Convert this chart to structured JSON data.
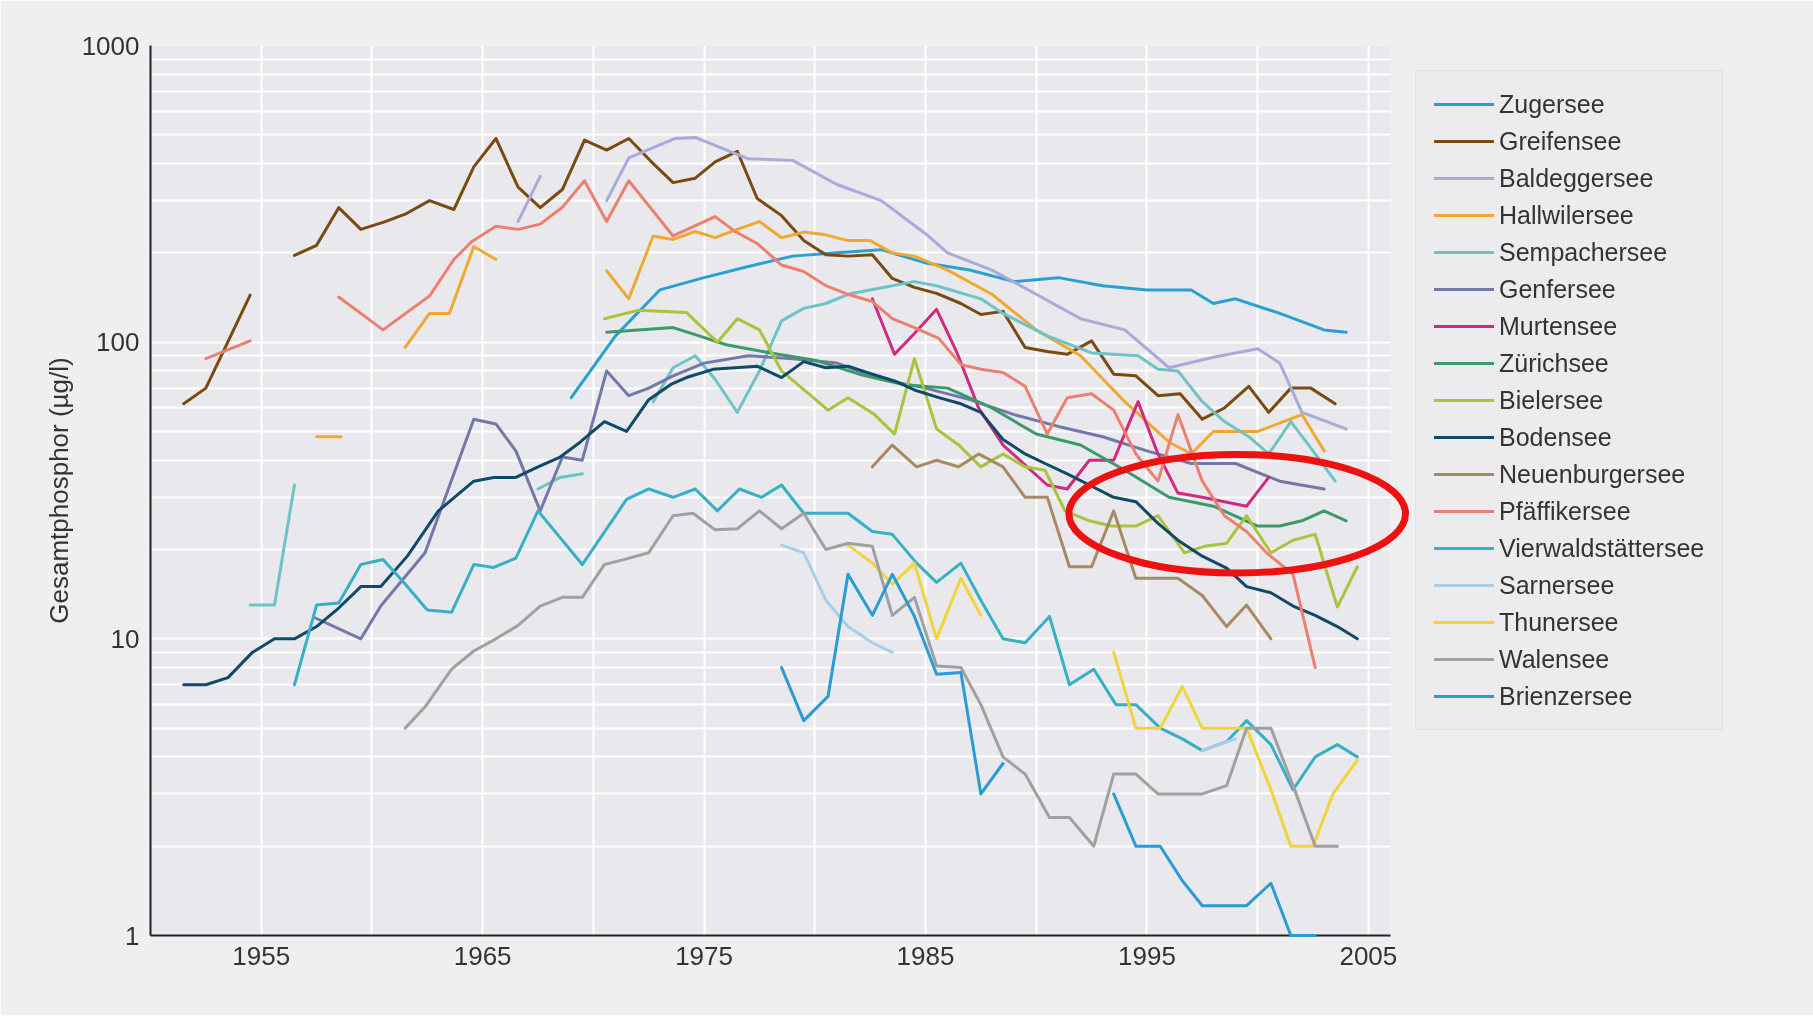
{
  "chart_data": {
    "type": "line",
    "ylabel": "Gesamtphosphor (µg/l)",
    "log": "y",
    "grid": true,
    "legend": "right",
    "xlim": [
      1950,
      2006
    ],
    "ylim": [
      1,
      1000
    ],
    "xticks": [
      1955,
      {
        "value": 1960,
        "label": null
      },
      1965,
      {
        "value": 1970,
        "label": null
      },
      1975,
      {
        "value": 1980,
        "label": null
      },
      1985,
      {
        "value": 1990,
        "label": null
      },
      1995,
      {
        "value": 2000,
        "label": null
      },
      2005
    ],
    "yticks": [
      1,
      10,
      100,
      1000
    ],
    "series": [
      {
        "name": "Zugersee",
        "color": "#2aa0d2",
        "x": [
          1969,
          1971,
          1973,
          1975,
          1977,
          1979,
          1981,
          1983,
          1985,
          1987,
          1989,
          1991,
          1993,
          1995,
          1997,
          1998,
          1999,
          2001,
          2003,
          2004
        ],
        "values": [
          65,
          105,
          150,
          165,
          180,
          195,
          200,
          205,
          185,
          175,
          160,
          165,
          155,
          150,
          150,
          135,
          140,
          125,
          110,
          108
        ]
      },
      {
        "name": "Greifensee",
        "color": "#7a4a10",
        "x": [
          1951.5,
          1952.5,
          1954.5,
          1955.5,
          1956.5,
          1957.5,
          1958.5,
          1959.5,
          1960.6,
          1961.5,
          1962.6,
          1963.7,
          1964.6,
          1965.6,
          1966.6,
          1967.6,
          1968.6,
          1969.6,
          1970.6,
          1971.6,
          1972.6,
          1973.6,
          1974.6,
          1975.5,
          1976.5,
          1977.4,
          1978.5,
          1979.5,
          1980.5,
          1981.5,
          1982.6,
          1983.5,
          1984.5,
          1985.5,
          1986.6,
          1987.5,
          1988.5,
          1989.5,
          1990.5,
          1991.4,
          1992.5,
          1993.5,
          1994.5,
          1995.5,
          1996.5,
          1997.5,
          1998.5,
          1999.6,
          2000.5,
          2001.5,
          2002.4,
          2003.5
        ],
        "values": [
          62,
          70,
          144,
          null,
          196,
          212,
          284,
          240,
          255,
          270,
          300,
          280,
          390,
          486,
          333,
          284,
          327,
          480,
          444,
          486,
          407,
          345,
          357,
          405,
          440,
          305,
          267,
          220,
          197,
          195,
          197,
          164,
          153,
          146,
          135,
          124,
          127,
          96,
          93,
          91,
          101,
          78,
          77,
          66,
          67,
          55,
          60,
          71,
          58,
          70,
          70,
          62
        ]
      },
      {
        "name": "Baldeggersee",
        "color": "#a9aad8",
        "x": [
          1966.6,
          1967.6,
          1969,
          1970.6,
          1971.6,
          1973.7,
          1974.6,
          1977,
          1979,
          1981,
          1983,
          1985,
          1986,
          1988,
          1990,
          1992,
          1994,
          1996,
          1998,
          2000,
          2001,
          2002,
          2004
        ],
        "values": [
          255,
          362,
          null,
          300,
          418,
          486,
          490,
          415,
          410,
          340,
          300,
          232,
          200,
          175,
          145,
          120,
          110,
          82,
          89,
          95,
          85,
          58,
          51
        ]
      },
      {
        "name": "Hallwilersee",
        "color": "#f0a832",
        "x": [
          1957.5,
          1958.6,
          1960,
          1961.5,
          1962.6,
          1963.5,
          1964.6,
          1965.6,
          1968,
          1970.6,
          1971.6,
          1972.7,
          1973.6,
          1974.6,
          1975.5,
          1976.5,
          1977.5,
          1978.5,
          1979.5,
          1980.5,
          1981.5,
          1982.5,
          1983.5,
          1984.5,
          1986,
          1988,
          1990,
          1992,
          1994,
          1996,
          1997,
          1998,
          2000,
          2002,
          2003
        ],
        "values": [
          48,
          48,
          null,
          96,
          125,
          125,
          210,
          190,
          null,
          174,
          140,
          228,
          222,
          236,
          225,
          240,
          255,
          225,
          235,
          230,
          220,
          220,
          200,
          195,
          175,
          145,
          110,
          90,
          63,
          46,
          42,
          50,
          50,
          57,
          43
        ]
      },
      {
        "name": "Sempachersee",
        "color": "#6ec4c4",
        "x": [
          1954.5,
          1955.6,
          1956.5,
          1962,
          1967.5,
          1968.5,
          1969.5,
          1971,
          1972.7,
          1973.6,
          1974.6,
          1975.5,
          1976.5,
          1977.5,
          1978.5,
          1979.5,
          1980.5,
          1981.5,
          1982.5,
          1983.5,
          1984.5,
          1985.5,
          1987.5,
          1988.5,
          1990.5,
          1992.5,
          1994.6,
          1995.5,
          1996.4,
          1997.5,
          1998.5,
          1999.6,
          2000.5,
          2001.5,
          2002.4,
          2003.5
        ],
        "values": [
          13,
          13,
          33,
          null,
          32,
          35,
          36,
          null,
          63,
          82,
          90,
          75,
          58,
          80,
          118,
          130,
          135,
          145,
          150,
          155,
          160,
          155,
          140,
          125,
          105,
          92,
          90,
          81,
          80,
          63,
          54,
          48,
          42,
          54,
          44,
          34
        ]
      },
      {
        "name": "Genfersee",
        "color": "#7478a8",
        "x": [
          1957.4,
          1959.5,
          1960.4,
          1962.4,
          1964.6,
          1965.6,
          1966.5,
          1967.6,
          1968.6,
          1969.5,
          1970.6,
          1971.6,
          1972.5,
          1973.6,
          1975,
          1977,
          1979,
          1981,
          1983,
          1985,
          1987,
          1989,
          1991,
          1993,
          1995,
          1997,
          1999,
          2001,
          2003
        ],
        "values": [
          11.8,
          10,
          12.9,
          19.5,
          55,
          53,
          43,
          27,
          41,
          40,
          80,
          66,
          70,
          77,
          85,
          90,
          88,
          85,
          75,
          70,
          64,
          57,
          52,
          48,
          43,
          39,
          39,
          34,
          32
        ]
      },
      {
        "name": "Murtensee",
        "color": "#d02a80",
        "x": [
          1982.6,
          1983.6,
          1984.5,
          1985.5,
          1986.4,
          1987.4,
          1988.5,
          1990.5,
          1991.4,
          1992.4,
          1993.5,
          1994.6,
          1995.5,
          1996.4,
          1997.5,
          1998.5,
          1999.5,
          2000.5
        ],
        "values": [
          140,
          91,
          107,
          129,
          93,
          60,
          45,
          33,
          32,
          40,
          40,
          63,
          42,
          31,
          30,
          29,
          28,
          35
        ]
      },
      {
        "name": "Zürichsee",
        "color": "#3a9a6c",
        "x": [
          1970.6,
          1973.6,
          1974.6,
          1976,
          1978,
          1980,
          1982,
          1984,
          1986,
          1988,
          1990,
          1992,
          1994,
          1996,
          1998,
          2000,
          2001,
          2002,
          2003,
          2004
        ],
        "values": [
          108,
          112,
          106,
          98,
          92,
          87,
          78,
          72,
          70,
          60,
          49,
          45,
          37,
          30,
          28,
          24,
          24,
          25,
          27,
          25
        ]
      },
      {
        "name": "Bielersee",
        "color": "#a8c43c",
        "x": [
          1970.5,
          1972,
          1974.2,
          1975.6,
          1976.5,
          1977.5,
          1978.5,
          1980.6,
          1981.5,
          1982.7,
          1983.6,
          1984.5,
          1985.5,
          1986.5,
          1987.5,
          1988.5,
          1989.5,
          1990.4,
          1991.3,
          1992.4,
          1993.4,
          1994.5,
          1995.5,
          1996.7,
          1997.6,
          1998.6,
          1999.5,
          2000.6,
          2001.6,
          2002.6,
          2003.6,
          2004.5
        ],
        "values": [
          120,
          128,
          126,
          100,
          120,
          110,
          80,
          59,
          65,
          57,
          49,
          88,
          51,
          45,
          38,
          42,
          38,
          37,
          27,
          25,
          24,
          24,
          26,
          19.5,
          20.5,
          21,
          26,
          19.5,
          21.5,
          22.5,
          12.8,
          17.5
        ]
      },
      {
        "name": "Bodensee",
        "color": "#0f4a68",
        "x": [
          1951.5,
          1952.5,
          1953.5,
          1954.6,
          1955.6,
          1956.5,
          1957.5,
          1958.5,
          1959.5,
          1960.4,
          1961.6,
          1963,
          1964.6,
          1965.5,
          1966.5,
          1967.5,
          1968.5,
          1969.4,
          1970.5,
          1971.5,
          1972.5,
          1973.5,
          1974.2,
          1975.4,
          1976.4,
          1977.4,
          1978.5,
          1979.5,
          1980.5,
          1981.5,
          1982.6,
          1983.6,
          1984.5,
          1985.6,
          1986.6,
          1987.5,
          1988.5,
          1989.5,
          1990.4,
          1991.4,
          1992.4,
          1993.5,
          1994.5,
          1995.5,
          1996.4,
          1997.5,
          1998.6,
          1999.5,
          2000.6,
          2001.6,
          2002.6,
          2003.6,
          2004.5
        ],
        "values": [
          7,
          7,
          7.4,
          9,
          10,
          10,
          11,
          12.7,
          15,
          15,
          19,
          27,
          34,
          35,
          35,
          38,
          41,
          46,
          54,
          50,
          64,
          72,
          76,
          81,
          82,
          83,
          76,
          86,
          82,
          83,
          78,
          74,
          69,
          65,
          62,
          58,
          47,
          42,
          39,
          36,
          33,
          30,
          29,
          24.5,
          21.5,
          19,
          17.3,
          15,
          14.3,
          12.9,
          12,
          11,
          10
        ]
      },
      {
        "name": "Neuenburgersee",
        "color": "#a88a62",
        "x": [
          1982.6,
          1983.5,
          1984.6,
          1985.5,
          1986.5,
          1987.4,
          1988.5,
          1989.5,
          1990.5,
          1991.5,
          1992.5,
          1993.5,
          1994.5,
          1995.5,
          1996.4,
          1997.5,
          1998.6,
          1999.5,
          2000.6
        ],
        "values": [
          38,
          45,
          38,
          40,
          38,
          42,
          38,
          30,
          30,
          17.5,
          17.5,
          27,
          16,
          16,
          16,
          14,
          11,
          13,
          10
        ]
      },
      {
        "name": "Pfäffikersee",
        "color": "#ec8070",
        "x": [
          1952.5,
          1954.5,
          1956,
          1958.5,
          1960.5,
          1962.6,
          1963.7,
          1964.5,
          1965.6,
          1966.6,
          1967.6,
          1968.6,
          1969.6,
          1970.6,
          1971.6,
          1973.6,
          1975.5,
          1976.4,
          1977.4,
          1978.5,
          1979.5,
          1980.5,
          1981.5,
          1982.6,
          1983.5,
          1984.5,
          1985.6,
          1986.6,
          1987.5,
          1988.5,
          1989.5,
          1990.5,
          1991.4,
          1992.5,
          1993.5,
          1994.5,
          1995.5,
          1996.4,
          1997.5,
          1998.5,
          1999.5,
          2000.4,
          2001.6,
          2002.6
        ],
        "values": [
          88,
          101,
          null,
          142,
          110,
          143,
          190,
          218,
          246,
          240,
          250,
          285,
          350,
          255,
          350,
          228,
          265,
          236,
          215,
          182,
          173,
          155,
          145,
          137,
          120,
          112,
          103,
          84,
          81,
          79,
          71,
          49,
          65,
          67,
          59,
          42,
          34,
          57,
          34,
          26,
          23,
          19.5,
          16.5,
          8
        ]
      },
      {
        "name": "Vierwaldstättersee",
        "color": "#36b0c4",
        "x": [
          1956.5,
          1957.5,
          1958.5,
          1959.5,
          1960.5,
          1961.5,
          1962.5,
          1963.6,
          1964.6,
          1965.5,
          1966.5,
          1967.5,
          1969.5,
          1971.5,
          1972.5,
          1973.6,
          1974.6,
          1975.6,
          1976.6,
          1977.6,
          1978.5,
          1979.5,
          1980.5,
          1981.5,
          1982.6,
          1983.5,
          1984.6,
          1985.5,
          1986.6,
          1987.5,
          1988.5,
          1989.5,
          1990.6,
          1991.5,
          1992.6,
          1993.6,
          1994.5,
          1995.6,
          1996.6,
          1997.5,
          1998.6,
          1999.5,
          2000.6,
          2001.6,
          2002.6,
          2003.6,
          2004.5
        ],
        "values": [
          7,
          13,
          13.2,
          17.8,
          18.5,
          15.3,
          12.5,
          12.3,
          17.8,
          17.4,
          18.7,
          27,
          17.8,
          29.5,
          32,
          30,
          32,
          27,
          32,
          30,
          33,
          26.5,
          26.5,
          26.5,
          23,
          22.5,
          18,
          15.5,
          18,
          13.5,
          10,
          9.7,
          11.9,
          7,
          7.9,
          6,
          6,
          5,
          4.6,
          4.2,
          4.5,
          5.3,
          4.4,
          3.1,
          4,
          4.4,
          4
        ]
      },
      {
        "name": "Sarnersee",
        "color": "#a8cfe8",
        "x": [
          1978.5,
          1979.5,
          1980.5,
          1981.5,
          1982.6,
          1983.5,
          1990,
          1997.5,
          1999
        ],
        "values": [
          20.7,
          19.5,
          13.5,
          11,
          9.7,
          9,
          null,
          4.2,
          4.6
        ]
      },
      {
        "name": "Thunersee",
        "color": "#f0d43a",
        "x": [
          1981.5,
          1982.6,
          1983.5,
          1984.5,
          1985.5,
          1986.6,
          1987.5,
          1990,
          1993.5,
          1994.5,
          1995.6,
          1996.6,
          1997.5,
          1998.6,
          1999.5,
          2000.6,
          2001.5,
          2002.5,
          2003.4,
          2004.5
        ],
        "values": [
          20.7,
          18,
          15.3,
          18,
          10,
          16,
          12,
          null,
          9,
          5,
          5,
          6.9,
          5,
          5,
          5,
          3.1,
          2,
          2,
          3,
          3.9
        ]
      },
      {
        "name": "Walensee",
        "color": "#a0a0a0",
        "x": [
          1961.5,
          1962.4,
          1963.6,
          1964.6,
          1965.6,
          1966.6,
          1967.6,
          1968.6,
          1969.5,
          1970.5,
          1971.5,
          1972.5,
          1973.6,
          1974.5,
          1975.5,
          1976.5,
          1977.5,
          1978.5,
          1979.5,
          1980.5,
          1981.5,
          1982.6,
          1983.5,
          1984.5,
          1985.5,
          1986.6,
          1987.5,
          1988.5,
          1989.5,
          1990.6,
          1991.5,
          1992.6,
          1993.5,
          1994.5,
          1995.5,
          1996.5,
          1997.5,
          1998.6,
          1999.5,
          2000.6,
          2001.6,
          2002.6,
          2003.6
        ],
        "values": [
          5,
          5.9,
          7.9,
          9.1,
          10,
          11.1,
          12.9,
          13.8,
          13.8,
          17.8,
          18.6,
          19.5,
          26,
          26.5,
          23.3,
          23.5,
          27,
          23.5,
          26.5,
          20,
          21,
          20.5,
          12,
          13.8,
          8.1,
          8,
          6,
          4,
          3.5,
          2.5,
          2.5,
          2,
          3.5,
          3.5,
          3,
          3,
          3,
          3.2,
          5,
          5,
          3.2,
          2,
          2
        ]
      },
      {
        "name": "Brienzersee",
        "color": "#2a9bd4",
        "x": [
          1978.5,
          1979.5,
          1980.6,
          1981.5,
          1982.6,
          1983.5,
          1984.5,
          1985.5,
          1986.6,
          1987.5,
          1988.5,
          1991,
          1993.5,
          1994.5,
          1995.6,
          1996.6,
          1997.5,
          1998.6,
          1999.5,
          2000.6,
          2001.5,
          2002.6
        ],
        "values": [
          8,
          5.3,
          6.4,
          16.5,
          12,
          16.5,
          11.9,
          7.6,
          7.7,
          3,
          3.8,
          null,
          3,
          2,
          2,
          1.53,
          1.26,
          1.26,
          1.26,
          1.5,
          1,
          1
        ]
      }
    ]
  }
}
